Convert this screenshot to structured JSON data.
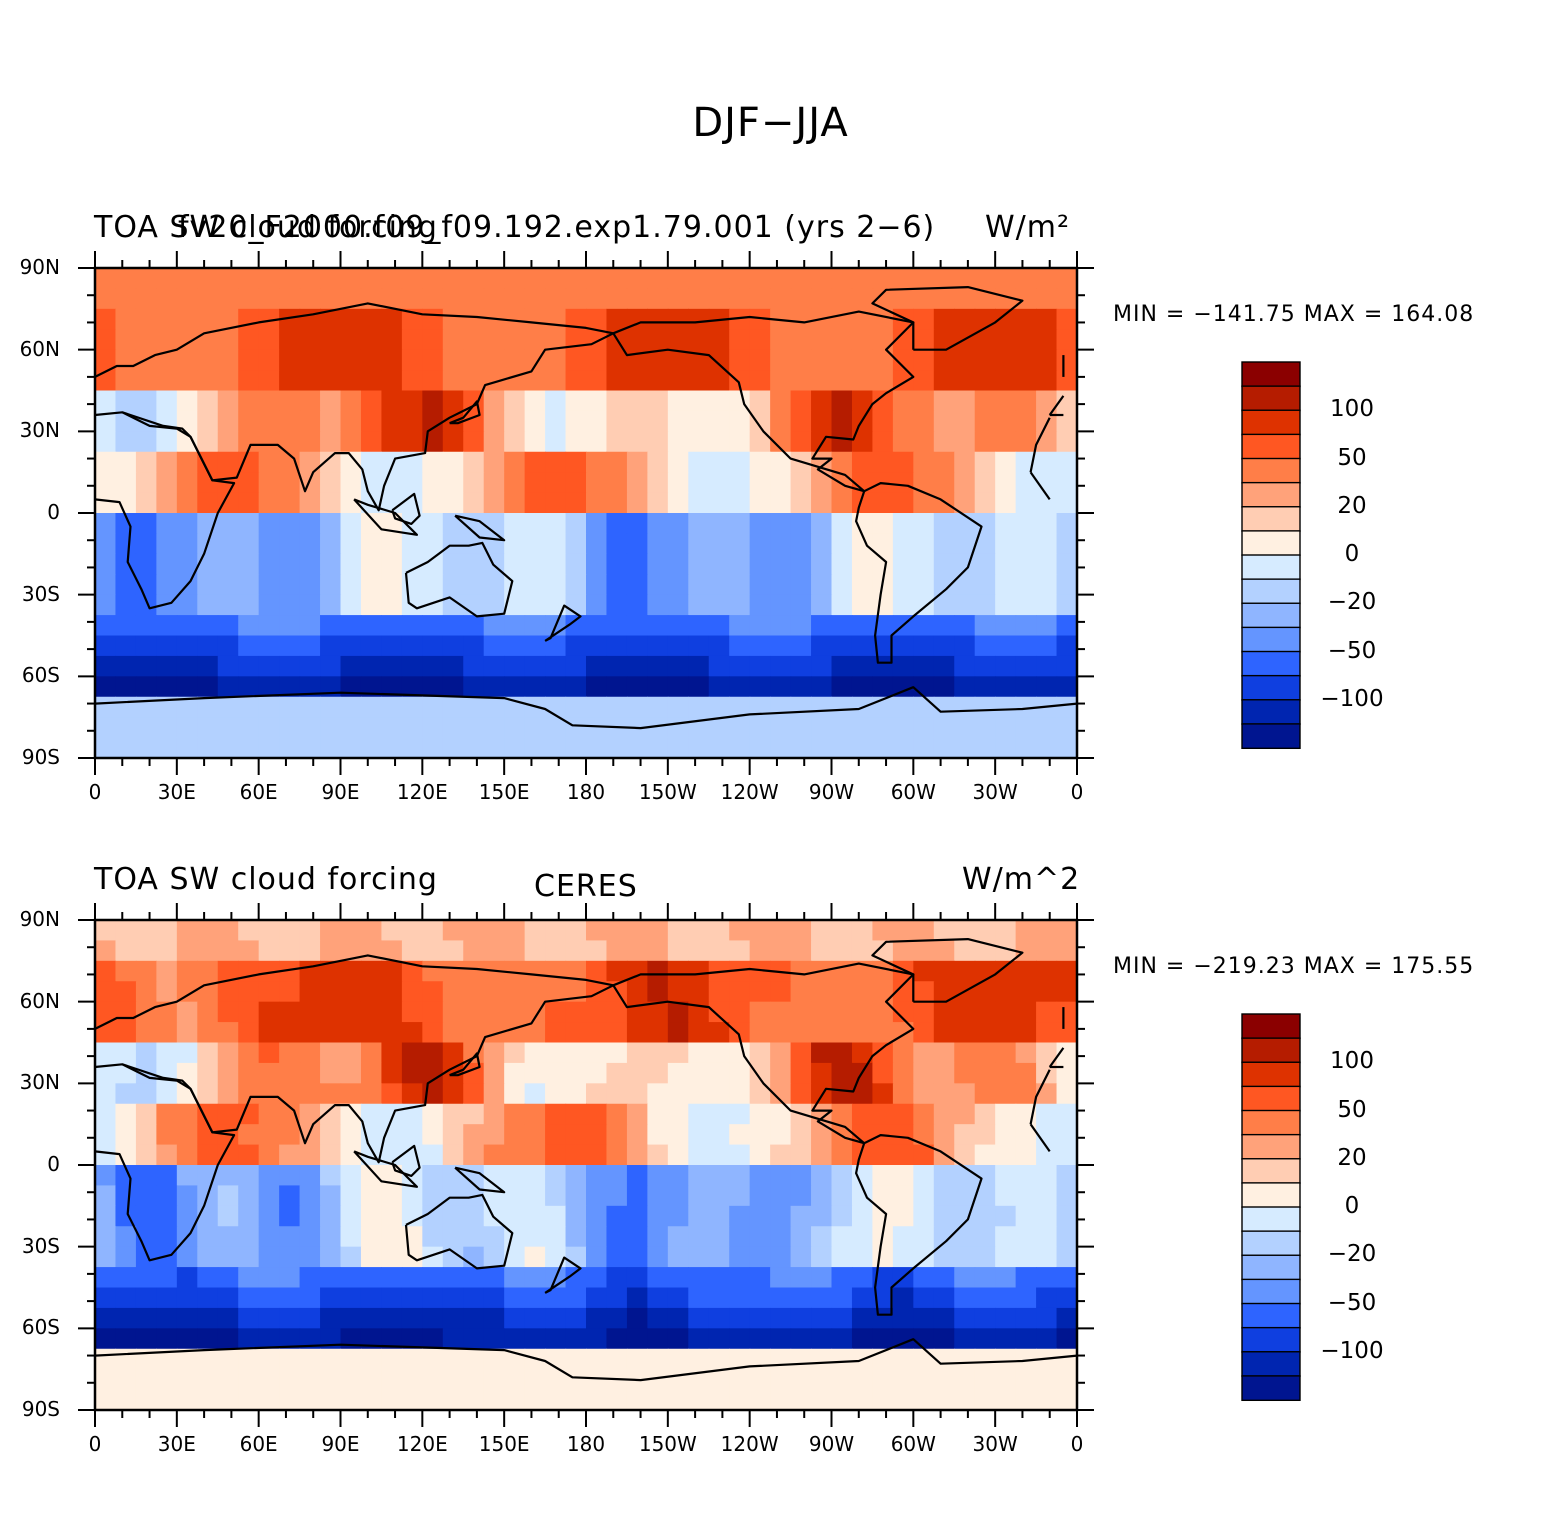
{
  "title": "DJF−JJA",
  "panels": [
    {
      "left_title": "TOA SW cloud forcing",
      "center_title": "fv20_F2000.f09_f09.192.exp1.79.001 (yrs 2−6)",
      "right_title": "W/m²",
      "minmax": "MIN = −141.75 MAX = 164.08",
      "variant": "model"
    },
    {
      "left_title": "TOA SW cloud forcing",
      "center_title": "CERES",
      "right_title": "W/m^2",
      "minmax": "MIN = −219.23 MAX = 175.55",
      "variant": "obs"
    }
  ],
  "axes": {
    "lat_labels": [
      "90N",
      "60N",
      "30N",
      "0",
      "30S",
      "60S",
      "90S"
    ],
    "lon_labels": [
      "0",
      "30E",
      "60E",
      "90E",
      "120E",
      "150E",
      "180",
      "150W",
      "120W",
      "90W",
      "60W",
      "30W",
      "0"
    ]
  },
  "colorbar": {
    "colors": [
      "#8b0000",
      "#b51c00",
      "#de3200",
      "#ff5722",
      "#ff7e48",
      "#ffa27a",
      "#ffcdb3",
      "#fff0e1",
      "#d6ebff",
      "#b3d1ff",
      "#8fb5ff",
      "#6495ff",
      "#2e64ff",
      "#0f3fe0",
      "#0025b0",
      "#001590"
    ],
    "labels": [
      "100",
      "50",
      "20",
      "0",
      "−20",
      "−50",
      "−100"
    ]
  },
  "chart_data": {
    "type": "heatmap",
    "title": "DJF−JJA",
    "units": "W/m²",
    "x_range": [
      0,
      360
    ],
    "y_range": [
      -90,
      90
    ],
    "x_ticks": [
      "0",
      "30E",
      "60E",
      "90E",
      "120E",
      "150E",
      "180",
      "150W",
      "120W",
      "90W",
      "60W",
      "30W",
      "0"
    ],
    "y_ticks": [
      "90N",
      "60N",
      "30N",
      "0",
      "30S",
      "60S",
      "90S"
    ],
    "panels": [
      {
        "name": "fv20_F2000.f09_f09.192.exp1.79.001 (yrs 2−6)",
        "min": -141.75,
        "max": 164.08
      },
      {
        "name": "CERES",
        "min": -219.23,
        "max": 175.55
      }
    ],
    "contour_boundaries": [
      -120,
      -100,
      -80,
      -60,
      -50,
      -40,
      -30,
      -20,
      -10,
      0,
      10,
      20,
      30,
      40,
      50,
      60,
      80,
      100,
      120
    ]
  }
}
